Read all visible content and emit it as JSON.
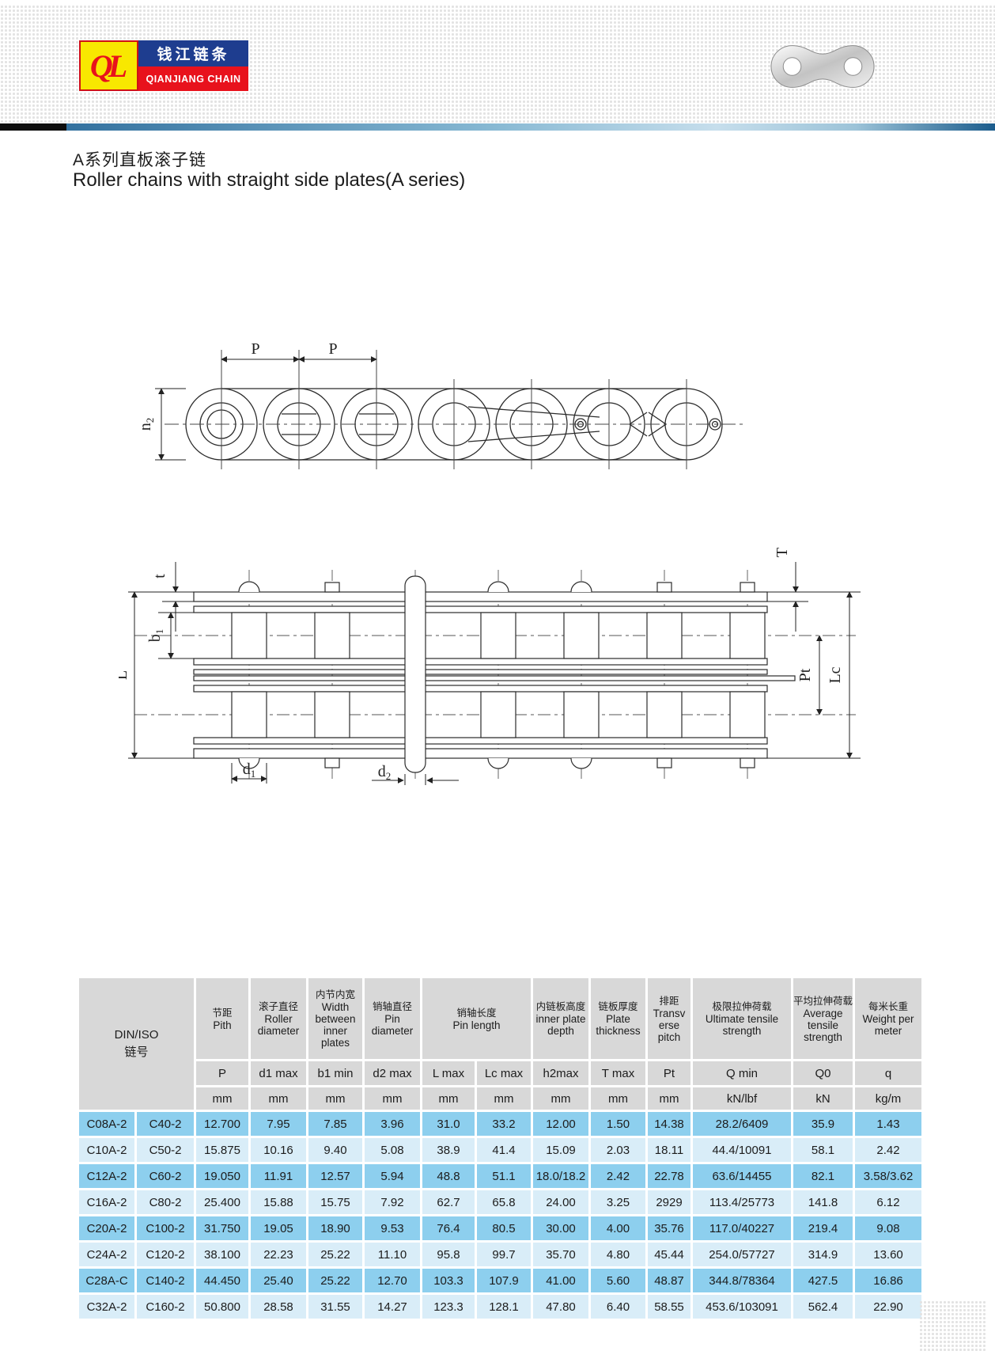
{
  "page": {
    "title_zh": "A系列直板滚子链",
    "title_en": "Roller chains with straight side plates(A series)"
  },
  "logo": {
    "monogram": "QL",
    "name_zh": "钱江链条",
    "name_en": "QIANJIANG CHAIN"
  },
  "diagrams": {
    "pitch_label_1": "P",
    "pitch_label_2": "P",
    "h2": {
      "base": "h",
      "sub": "2"
    },
    "t_label": "t",
    "b1": {
      "base": "b",
      "sub": "1"
    },
    "L_label": "L",
    "T_label": "T",
    "Pt_label": "Pt",
    "Lc_label": "Lc",
    "d1": {
      "base": "d",
      "sub": "1"
    },
    "d2": {
      "base": "d",
      "sub": "2"
    }
  },
  "table": {
    "header": {
      "din_iso": [
        "DIN/ISO",
        "链号"
      ],
      "groups": [
        {
          "zh": "节距",
          "en": "Pith"
        },
        {
          "zh": "滚子直径",
          "en": "Roller diameter"
        },
        {
          "zh": "内节内宽",
          "en": "Width between inner plates"
        },
        {
          "zh": "销轴直径",
          "en": "Pin diameter"
        },
        {
          "zh": "销轴长度",
          "en": "Pin length",
          "span": 2
        },
        {
          "zh": "内链板高度",
          "en": "inner plate depth"
        },
        {
          "zh": "链板厚度",
          "en": "Plate thickness"
        },
        {
          "zh": "排距",
          "en": "Transv erse pitch"
        },
        {
          "zh": "极限拉伸荷载",
          "en": "Ultimate tensile strength"
        },
        {
          "zh": "平均拉伸荷载",
          "en": "Average tensile strength"
        },
        {
          "zh": "每米长重",
          "en": "Weight per meter"
        }
      ],
      "symbols": [
        "P",
        "d1 max",
        "b1 min",
        "d2 max",
        "L max",
        "Lc max",
        "h2max",
        "T max",
        "Pt",
        "Q min",
        "Q0",
        "q"
      ],
      "units": [
        "mm",
        "mm",
        "mm",
        "mm",
        "mm",
        "mm",
        "mm",
        "mm",
        "mm",
        "kN/lbf",
        "kN",
        "kg/m"
      ]
    },
    "rows": [
      [
        "C08A-2",
        "C40-2",
        "12.700",
        "7.95",
        "7.85",
        "3.96",
        "31.0",
        "33.2",
        "12.00",
        "1.50",
        "14.38",
        "28.2/6409",
        "35.9",
        "1.43"
      ],
      [
        "C10A-2",
        "C50-2",
        "15.875",
        "10.16",
        "9.40",
        "5.08",
        "38.9",
        "41.4",
        "15.09",
        "2.03",
        "18.11",
        "44.4/10091",
        "58.1",
        "2.42"
      ],
      [
        "C12A-2",
        "C60-2",
        "19.050",
        "11.91",
        "12.57",
        "5.94",
        "48.8",
        "51.1",
        "18.0/18.2",
        "2.42",
        "22.78",
        "63.6/14455",
        "82.1",
        "3.58/3.62"
      ],
      [
        "C16A-2",
        "C80-2",
        "25.400",
        "15.88",
        "15.75",
        "7.92",
        "62.7",
        "65.8",
        "24.00",
        "3.25",
        "2929",
        "113.4/25773",
        "141.8",
        "6.12"
      ],
      [
        "C20A-2",
        "C100-2",
        "31.750",
        "19.05",
        "18.90",
        "9.53",
        "76.4",
        "80.5",
        "30.00",
        "4.00",
        "35.76",
        "117.0/40227",
        "219.4",
        "9.08"
      ],
      [
        "C24A-2",
        "C120-2",
        "38.100",
        "22.23",
        "25.22",
        "11.10",
        "95.8",
        "99.7",
        "35.70",
        "4.80",
        "45.44",
        "254.0/57727",
        "314.9",
        "13.60"
      ],
      [
        "C28A-C",
        "C140-2",
        "44.450",
        "25.40",
        "25.22",
        "12.70",
        "103.3",
        "107.9",
        "41.00",
        "5.60",
        "48.87",
        "344.8/78364",
        "427.5",
        "16.86"
      ],
      [
        "C32A-2",
        "C160-2",
        "50.800",
        "28.58",
        "31.55",
        "14.27",
        "123.3",
        "128.1",
        "47.80",
        "6.40",
        "58.55",
        "453.6/103091",
        "562.4",
        "22.90"
      ]
    ]
  },
  "colors": {
    "row_odd": "#8dcfee",
    "row_even": "#d9edf8",
    "header_bg": "#d8d8d8",
    "logo_blue": "#1e3d8f",
    "logo_red": "#e8121c",
    "logo_yellow": "#f8e800"
  }
}
